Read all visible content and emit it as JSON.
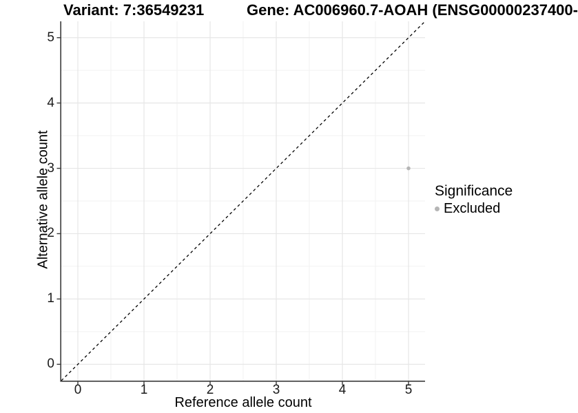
{
  "header": {
    "variant_title": "Variant: 7:36549231",
    "gene_title": "Gene: AC006960.7-AOAH (ENSG00000237400-"
  },
  "legend": {
    "title": "Significance",
    "items": [
      {
        "label": "Excluded",
        "color": "#b5b5b5"
      }
    ]
  },
  "chart_data": {
    "type": "scatter",
    "title": "Variant: 7:36549231    Gene: AC006960.7-AOAH (ENSG00000237400-",
    "xlabel": "Reference allele count",
    "ylabel": "Alternative allele count",
    "xlim": [
      -0.25,
      5.25
    ],
    "ylim": [
      -0.25,
      5.25
    ],
    "x_ticks": [
      0,
      1,
      2,
      3,
      4,
      5
    ],
    "y_ticks": [
      0,
      1,
      2,
      3,
      4,
      5
    ],
    "minor_grid_x": [
      0.5,
      1.5,
      2.5,
      3.5,
      4.5
    ],
    "minor_grid_y": [
      0.5,
      1.5,
      2.5,
      3.5,
      4.5
    ],
    "grid": true,
    "legend_position": "right",
    "series": [
      {
        "name": "Excluded",
        "color": "#b5b5b5",
        "points": [
          {
            "x": 5,
            "y": 3
          }
        ]
      }
    ],
    "reference_line": {
      "type": "identity",
      "equation": "y = x",
      "style": "dashed",
      "color": "#000000"
    },
    "colors": {
      "background": "#ffffff",
      "major_grid": "#e6e6e6",
      "minor_grid": "#f2f2f2",
      "axis_line": "#3a3a3a",
      "tick": "#3a3a3a",
      "point": "#b5b5b5"
    }
  }
}
